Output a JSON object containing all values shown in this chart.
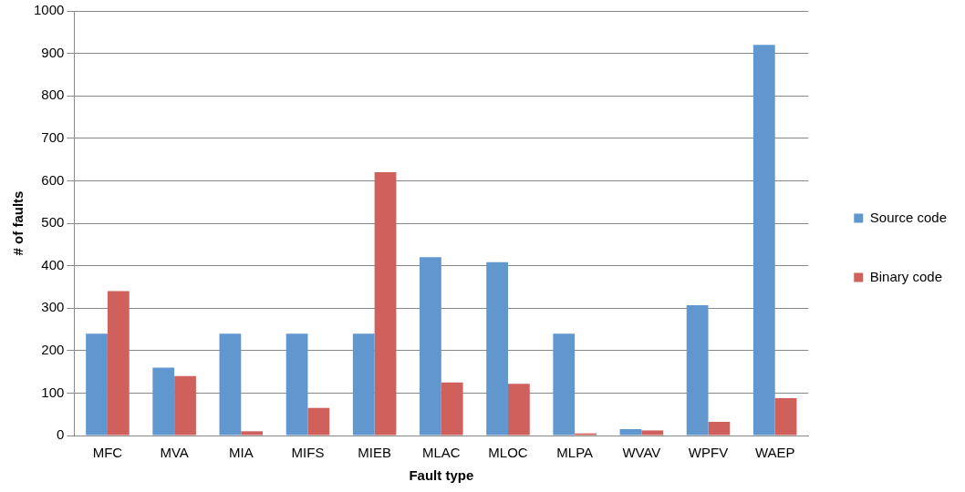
{
  "chart_data": {
    "type": "bar",
    "xlabel": "Fault type",
    "ylabel": "# of faults",
    "categories": [
      "MFC",
      "MVA",
      "MIA",
      "MIFS",
      "MIEB",
      "MLAC",
      "MLOC",
      "MLPA",
      "WVAV",
      "WPFV",
      "WAEP"
    ],
    "series": [
      {
        "name": "Source code",
        "color": "#6097cf",
        "values": [
          240,
          160,
          240,
          240,
          240,
          420,
          408,
          240,
          15,
          307,
          920
        ]
      },
      {
        "name": "Binary code",
        "color": "#d0605c",
        "values": [
          340,
          140,
          10,
          65,
          620,
          125,
          122,
          5,
          12,
          32,
          88
        ]
      }
    ],
    "ylim": [
      0,
      1000
    ],
    "yticks": [
      0,
      100,
      200,
      300,
      400,
      500,
      600,
      700,
      800,
      900,
      1000
    ],
    "grid": "y",
    "legend": "right"
  }
}
